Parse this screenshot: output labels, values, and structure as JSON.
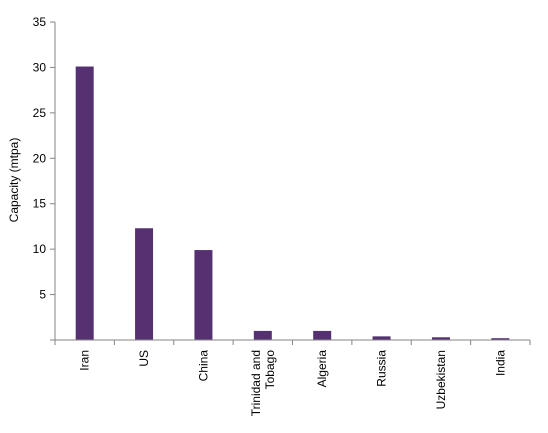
{
  "chart_data": {
    "type": "bar",
    "title": "",
    "xlabel": "",
    "ylabel": "Capacity (mtpa)",
    "categories": [
      "Iran",
      "US",
      "China",
      "Trinidad and Tobago",
      "Algeria",
      "Russia",
      "Uzbekistan",
      "India"
    ],
    "category_lines": [
      [
        "Iran"
      ],
      [
        "US"
      ],
      [
        "China"
      ],
      [
        "Trinidad and",
        "Tobago"
      ],
      [
        "Algeria"
      ],
      [
        "Russia"
      ],
      [
        "Uzbekistan"
      ],
      [
        "India"
      ]
    ],
    "values": [
      30.1,
      12.3,
      9.9,
      1.0,
      1.0,
      0.4,
      0.3,
      0.2
    ],
    "ylim": [
      0,
      35
    ],
    "yticks": [
      5,
      10,
      15,
      20,
      25,
      30,
      35
    ],
    "grid": false,
    "legend": "none",
    "colors": {
      "bar": "#553171",
      "axis": "#868686"
    }
  }
}
